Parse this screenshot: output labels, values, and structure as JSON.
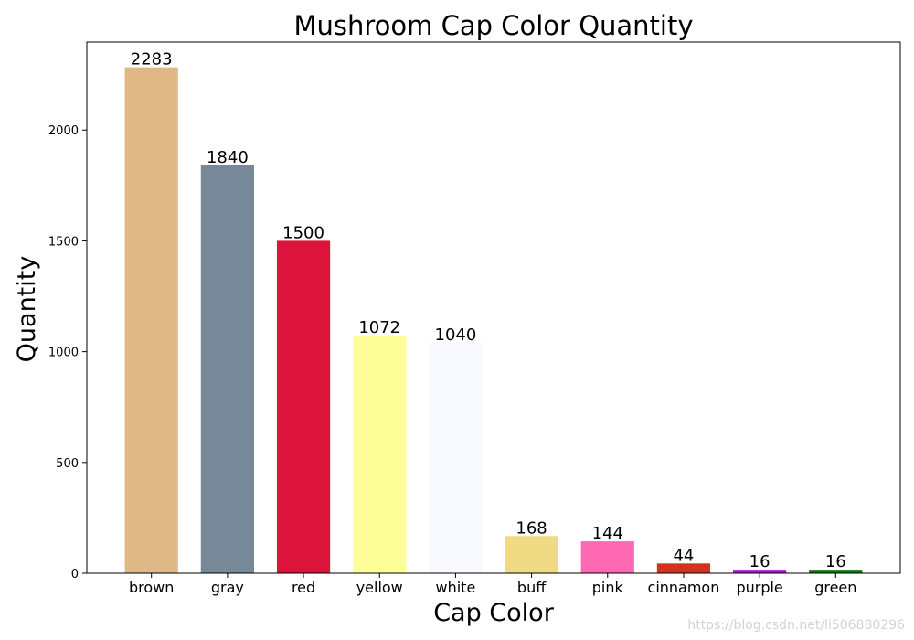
{
  "chart_data": {
    "type": "bar",
    "title": "Mushroom Cap Color Quantity",
    "xlabel": "Cap Color",
    "ylabel": "Quantity",
    "categories": [
      "brown",
      "gray",
      "red",
      "yellow",
      "white",
      "buff",
      "pink",
      "cinnamon",
      "purple",
      "green"
    ],
    "values": [
      2283,
      1840,
      1500,
      1072,
      1040,
      168,
      144,
      44,
      16,
      16
    ],
    "colors": [
      "#deb887",
      "#778899",
      "#dc143c",
      "#ffff99",
      "#f8f8ff",
      "#f0db84",
      "#ff69b4",
      "#d2321e",
      "#a020c8",
      "#0a7d0a"
    ],
    "yticks": [
      0,
      500,
      1000,
      1500,
      2000
    ],
    "ylim": [
      0,
      2397
    ],
    "grid": false,
    "legend": "none"
  },
  "watermark": "https://blog.csdn.net/li506880296"
}
